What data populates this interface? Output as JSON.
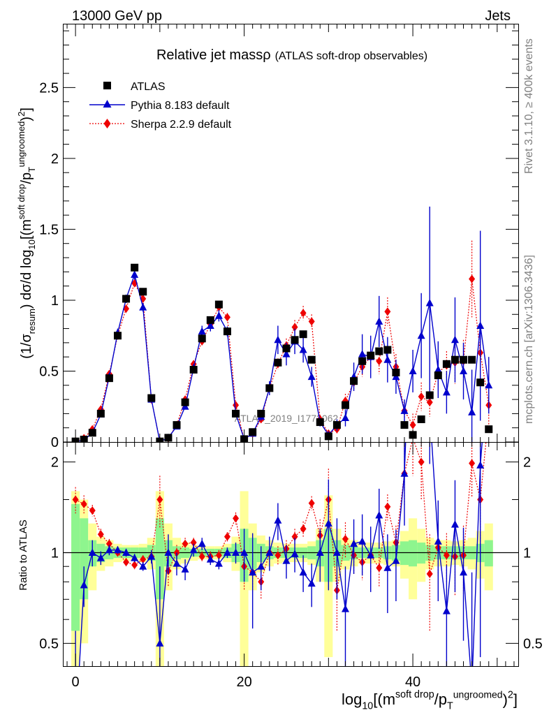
{
  "header": {
    "left": "13000 GeV pp",
    "right": "Jets"
  },
  "side_labels": {
    "rivet": "Rivet 3.1.10, ≥ 400k events",
    "mcplots": "mcplots.cern.ch [arXiv:1306.3436]"
  },
  "colors": {
    "data": "#000000",
    "pythia": "#0000cc",
    "sherpa": "#ee0000",
    "band_inner": "#8ef58e",
    "band_outer": "#ffff99"
  },
  "chart_data": {
    "type": "scatter",
    "title": "Relative jet massρ",
    "subtitle": "(ATLAS soft-drop observables)",
    "watermark": "ATLAS_2019_I1772062",
    "ylabel": "(1/σresum) dσ/d log10[(msoft drop/pTungroomed)2]",
    "ylabel_parts": [
      "(1/σ",
      "resum",
      ") dσ/d log",
      "10",
      "[(m",
      "soft drop",
      "/p",
      "T",
      "ungroomed",
      ")",
      "2",
      "]"
    ],
    "xlabel_parts": [
      "log",
      "10",
      "[(m",
      "soft drop",
      "/p",
      "T",
      "ungroomed",
      ")",
      "2",
      "]"
    ],
    "ratio_ylabel": "Ratio to ATLAS",
    "xlim": [
      -1.5,
      52.5
    ],
    "ylim": [
      0,
      2.95
    ],
    "ratio_ylim": [
      0.42,
      2.33
    ],
    "x_ticks": [
      0,
      20,
      40
    ],
    "x_tick_labels": [
      "0",
      "20",
      "40"
    ],
    "y_ticks": [
      0,
      0.5,
      1,
      1.5,
      2,
      2.5
    ],
    "y_tick_labels": [
      "0",
      "0.5",
      "1",
      "1.5",
      "2",
      "2.5"
    ],
    "ratio_y_ticks": [
      0.5,
      1,
      2
    ],
    "ratio_y_tick_labels": [
      "0.5",
      "1",
      "2"
    ],
    "legend": [
      "ATLAS",
      "Pythia 8.183 default",
      "Sherpa 2.2.9 default"
    ],
    "series": [
      {
        "name": "ATLAS",
        "x": [
          0,
          1,
          2,
          3,
          4,
          5,
          6,
          7,
          8,
          9,
          10,
          11,
          12,
          13,
          14,
          15,
          16,
          17,
          18,
          19,
          20,
          21,
          22,
          23,
          24,
          25,
          26,
          27,
          28,
          29,
          30,
          31,
          32,
          33,
          34,
          35,
          36,
          37,
          38,
          39,
          40,
          41,
          42,
          43,
          44,
          45,
          46,
          47,
          48,
          49
        ],
        "values": [
          0.004,
          0.017,
          0.065,
          0.2,
          0.45,
          0.75,
          1.01,
          1.23,
          1.06,
          0.31,
          0.004,
          0.03,
          0.12,
          0.28,
          0.51,
          0.73,
          0.86,
          0.97,
          0.78,
          0.2,
          0.02,
          0.07,
          0.2,
          0.38,
          0.56,
          0.66,
          0.72,
          0.76,
          0.58,
          0.14,
          0.04,
          0.12,
          0.26,
          0.43,
          0.57,
          0.61,
          0.64,
          0.65,
          0.49,
          0.12,
          0.05,
          0.16,
          0.33,
          0.47,
          0.55,
          0.58,
          0.58,
          0.58,
          0.42,
          0.09
        ]
      },
      {
        "name": "Pythia 8.183 default",
        "x": [
          0,
          1,
          2,
          3,
          4,
          5,
          6,
          7,
          8,
          9,
          10,
          11,
          12,
          13,
          14,
          15,
          16,
          17,
          18,
          19,
          20,
          21,
          22,
          23,
          24,
          25,
          26,
          27,
          28,
          29,
          30,
          31,
          32,
          33,
          34,
          35,
          36,
          37,
          38,
          39,
          40,
          41,
          42,
          43,
          44,
          45,
          46,
          47,
          48,
          49
        ],
        "values": [
          0.001,
          0.013,
          0.065,
          0.195,
          0.46,
          0.77,
          1.01,
          1.18,
          0.95,
          0.3,
          0.002,
          0.03,
          0.11,
          0.25,
          0.52,
          0.78,
          0.82,
          0.89,
          0.78,
          0.2,
          0.02,
          0.06,
          0.18,
          0.38,
          0.72,
          0.62,
          0.71,
          0.65,
          0.46,
          0.14,
          0.05,
          0.12,
          0.17,
          0.46,
          0.62,
          0.6,
          0.85,
          0.58,
          0.46,
          0.22,
          0.5,
          0.75,
          0.98,
          0.51,
          0.35,
          0.72,
          0.5,
          0.21,
          0.82,
          0.4
        ],
        "errors": [
          0.003,
          0.006,
          0.01,
          0.02,
          0.025,
          0.03,
          0.03,
          0.035,
          0.03,
          0.02,
          0.003,
          0.006,
          0.01,
          0.02,
          0.03,
          0.04,
          0.04,
          0.04,
          0.035,
          0.02,
          0.008,
          0.02,
          0.03,
          0.05,
          0.1,
          0.08,
          0.09,
          0.09,
          0.07,
          0.03,
          0.02,
          0.04,
          0.06,
          0.1,
          0.14,
          0.15,
          0.18,
          0.16,
          0.12,
          0.08,
          0.15,
          0.3,
          0.68,
          0.2,
          0.15,
          0.3,
          0.2,
          0.3,
          0.67,
          0.2
        ]
      },
      {
        "name": "Sherpa 2.2.9 default",
        "x": [
          0,
          1,
          2,
          3,
          4,
          5,
          6,
          7,
          8,
          9,
          10,
          11,
          12,
          13,
          14,
          15,
          16,
          17,
          18,
          19,
          20,
          21,
          22,
          23,
          24,
          25,
          26,
          27,
          28,
          29,
          30,
          31,
          32,
          33,
          34,
          35,
          36,
          37,
          38,
          39,
          40,
          41,
          42,
          43,
          44,
          45,
          46,
          47,
          48,
          49
        ],
        "values": [
          0.006,
          0.027,
          0.09,
          0.23,
          0.48,
          0.75,
          0.94,
          1.12,
          1.01,
          0.3,
          0.006,
          0.026,
          0.12,
          0.3,
          0.55,
          0.71,
          0.83,
          0.95,
          0.88,
          0.26,
          0.018,
          0.06,
          0.16,
          0.38,
          0.55,
          0.68,
          0.81,
          0.91,
          0.85,
          0.16,
          0.06,
          0.09,
          0.29,
          0.42,
          0.53,
          0.6,
          0.57,
          0.92,
          0.53,
          0.22,
          0.12,
          0.32,
          0.28,
          0.49,
          0.54,
          0.56,
          0.57,
          1.15,
          0.63,
          0.26
        ],
        "errors": [
          0.003,
          0.005,
          0.01,
          0.015,
          0.02,
          0.025,
          0.03,
          0.03,
          0.03,
          0.02,
          0.003,
          0.005,
          0.01,
          0.02,
          0.02,
          0.03,
          0.03,
          0.03,
          0.03,
          0.02,
          0.005,
          0.01,
          0.02,
          0.03,
          0.04,
          0.05,
          0.05,
          0.05,
          0.05,
          0.03,
          0.02,
          0.03,
          0.05,
          0.06,
          0.07,
          0.08,
          0.09,
          0.1,
          0.09,
          0.06,
          0.08,
          0.1,
          0.1,
          0.1,
          0.1,
          0.15,
          0.15,
          0.27,
          0.2,
          0.15
        ]
      }
    ],
    "ratio": {
      "pythia": [
        0.25,
        0.78,
        1.0,
        0.96,
        1.02,
        1.02,
        1.0,
        0.96,
        0.9,
        0.97,
        0.5,
        1.0,
        0.92,
        0.88,
        1.02,
        1.07,
        0.95,
        0.92,
        1.0,
        1.0,
        1.0,
        0.86,
        0.9,
        1.0,
        1.28,
        0.94,
        0.99,
        0.86,
        0.79,
        1.0,
        1.25,
        1.0,
        0.65,
        1.07,
        1.09,
        0.98,
        1.33,
        0.89,
        0.94,
        1.83,
        10,
        4.7,
        2.97,
        1.09,
        0.64,
        1.24,
        0.86,
        0.36,
        1.95,
        4.4
      ],
      "sherpa": [
        1.5,
        1.45,
        1.38,
        1.15,
        1.07,
        1.0,
        0.93,
        0.91,
        0.95,
        0.97,
        1.5,
        0.87,
        1.0,
        1.07,
        1.08,
        0.97,
        0.97,
        0.98,
        1.13,
        1.3,
        0.9,
        0.86,
        0.8,
        1.0,
        0.98,
        1.03,
        1.13,
        1.2,
        1.46,
        1.14,
        1.5,
        0.75,
        1.11,
        0.98,
        0.93,
        0.98,
        0.89,
        1.42,
        1.08,
        1.83,
        2.4,
        2.0,
        0.85,
        1.04,
        0.98,
        0.97,
        0.98,
        1.98,
        1.5,
        2.89
      ],
      "pythia_err": [
        0.3,
        0.12,
        0.1,
        0.05,
        0.04,
        0.03,
        0.03,
        0.03,
        0.03,
        0.05,
        0.4,
        0.15,
        0.08,
        0.07,
        0.05,
        0.05,
        0.04,
        0.04,
        0.04,
        0.08,
        0.2,
        0.3,
        0.15,
        0.13,
        0.18,
        0.12,
        0.13,
        0.12,
        0.13,
        0.2,
        0.5,
        0.3,
        0.25,
        0.22,
        0.25,
        0.24,
        0.3,
        0.26,
        0.25,
        0.6,
        1,
        1,
        1.0,
        0.4,
        0.27,
        0.5,
        0.35,
        0.5,
        1.5,
        1
      ],
      "sherpa_err": [
        0.15,
        0.1,
        0.06,
        0.05,
        0.04,
        0.03,
        0.03,
        0.03,
        0.03,
        0.04,
        0.3,
        0.1,
        0.06,
        0.05,
        0.04,
        0.04,
        0.04,
        0.04,
        0.04,
        0.06,
        0.15,
        0.12,
        0.1,
        0.07,
        0.07,
        0.07,
        0.07,
        0.07,
        0.08,
        0.15,
        0.4,
        0.2,
        0.15,
        0.13,
        0.12,
        0.12,
        0.12,
        0.14,
        0.15,
        0.4,
        0.6,
        0.5,
        0.3,
        0.2,
        0.18,
        0.25,
        0.25,
        0.45,
        0.5,
        0.6
      ],
      "band_inner": [
        0.45,
        0.3,
        0.1,
        0.07,
        0.05,
        0.04,
        0.04,
        0.04,
        0.04,
        0.06,
        0.3,
        0.1,
        0.05,
        0.04,
        0.03,
        0.03,
        0.03,
        0.03,
        0.04,
        0.07,
        0.2,
        0.12,
        0.07,
        0.05,
        0.04,
        0.04,
        0.04,
        0.04,
        0.05,
        0.1,
        0.2,
        0.1,
        0.06,
        0.05,
        0.04,
        0.04,
        0.04,
        0.05,
        0.06,
        0.09,
        0.1,
        0.08,
        0.06,
        0.05,
        0.05,
        0.05,
        0.05,
        0.05,
        0.07,
        0.1
      ],
      "band_outer": [
        0.6,
        0.5,
        0.25,
        0.13,
        0.1,
        0.07,
        0.06,
        0.06,
        0.07,
        0.12,
        0.6,
        0.25,
        0.12,
        0.08,
        0.06,
        0.05,
        0.05,
        0.05,
        0.07,
        0.13,
        0.6,
        0.25,
        0.14,
        0.1,
        0.08,
        0.07,
        0.07,
        0.07,
        0.09,
        0.2,
        0.55,
        0.2,
        0.12,
        0.1,
        0.08,
        0.08,
        0.08,
        0.09,
        0.1,
        0.18,
        0.3,
        0.2,
        0.12,
        0.1,
        0.1,
        0.09,
        0.1,
        0.12,
        0.18,
        0.25
      ]
    }
  }
}
